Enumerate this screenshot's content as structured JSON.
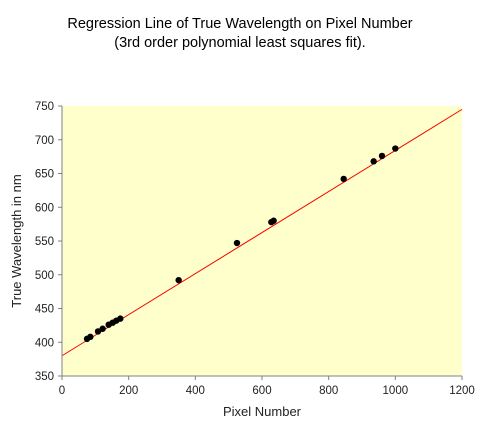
{
  "chart_data": {
    "type": "scatter",
    "title": "Regression Line of True Wavelength on Pixel Number",
    "subtitle": "(3rd order polynomial least squares fit).",
    "xlabel": "Pixel Number",
    "ylabel": "True Wavelength in nm",
    "xlim": [
      0,
      1200
    ],
    "ylim": [
      350,
      750
    ],
    "x_ticks": [
      0,
      200,
      400,
      600,
      800,
      1000,
      1200
    ],
    "y_ticks": [
      350,
      400,
      450,
      500,
      550,
      600,
      650,
      700,
      750
    ],
    "grid": false,
    "legend": "none",
    "series": [
      {
        "type": "scatter",
        "x": [
          75,
          85,
          108,
          122,
          140,
          152,
          163,
          175,
          350,
          525,
          628,
          635,
          845,
          935,
          960,
          1000
        ],
        "y": [
          405,
          408,
          416,
          420,
          426,
          429,
          432,
          435,
          492,
          547,
          578,
          580,
          642,
          668,
          676,
          687
        ]
      },
      {
        "type": "line",
        "x": [
          0,
          1200
        ],
        "y": [
          380,
          745
        ]
      }
    ],
    "colors": {
      "plot_background": "#ffffcc",
      "points": "#000000",
      "fit_line": "#ff0000",
      "axes": "#808080"
    }
  }
}
